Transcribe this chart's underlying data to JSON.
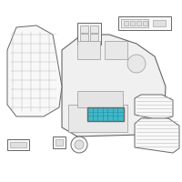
{
  "bg_color": "#ffffff",
  "highlight_color": "#40b8c8",
  "line_color": "#999999",
  "dark_line": "#666666",
  "light_line": "#bbbbbb",
  "border_color": "#dddddd",
  "face_color": "#f8f8f8",
  "face_color2": "#f0f0f0"
}
